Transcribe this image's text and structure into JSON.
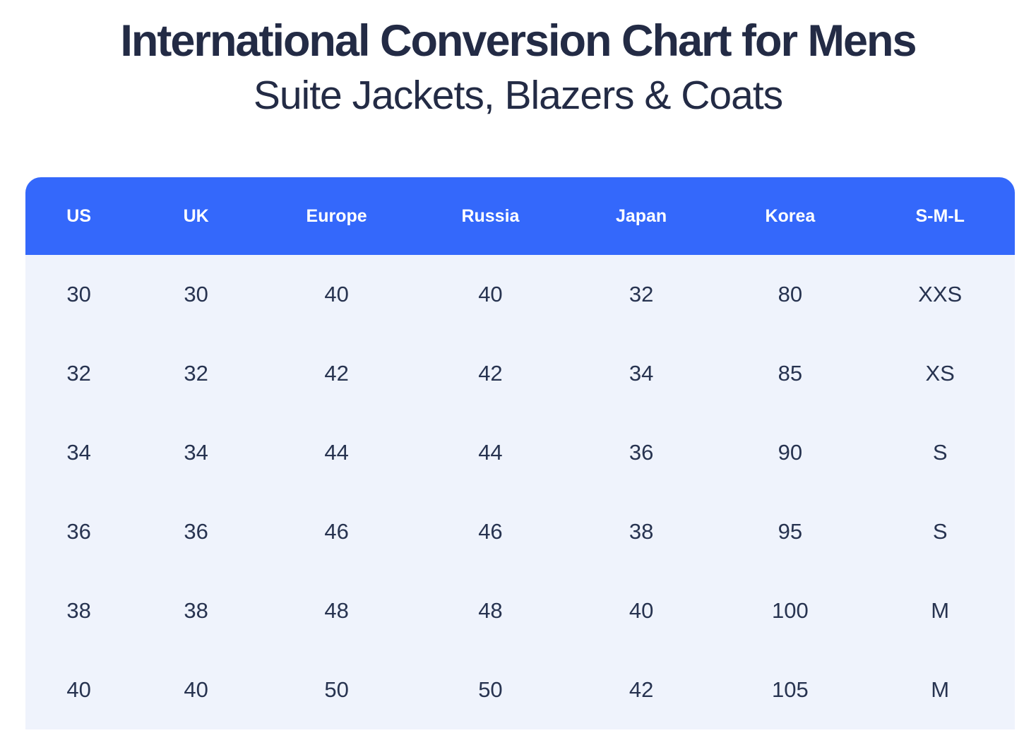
{
  "page": {
    "title": "International Conversion Chart for Mens",
    "subtitle": "Suite Jackets, Blazers & Coats"
  },
  "table": {
    "columns": [
      "US",
      "UK",
      "Europe",
      "Russia",
      "Japan",
      "Korea",
      "S-M-L"
    ],
    "rows": [
      [
        "30",
        "30",
        "40",
        "40",
        "32",
        "80",
        "XXS"
      ],
      [
        "32",
        "32",
        "42",
        "42",
        "34",
        "85",
        "XS"
      ],
      [
        "34",
        "34",
        "44",
        "44",
        "36",
        "90",
        "S"
      ],
      [
        "36",
        "36",
        "46",
        "46",
        "38",
        "95",
        "S"
      ],
      [
        "38",
        "38",
        "48",
        "48",
        "40",
        "100",
        "M"
      ],
      [
        "40",
        "40",
        "50",
        "50",
        "42",
        "105",
        "M"
      ]
    ]
  },
  "colors": {
    "header_bg": "#3468FB",
    "header_text": "#FFFFFF",
    "body_bg": "#EFF3FC",
    "cell_text": "#273350",
    "title_color": "#232B45",
    "page_bg": "#FFFFFF"
  }
}
